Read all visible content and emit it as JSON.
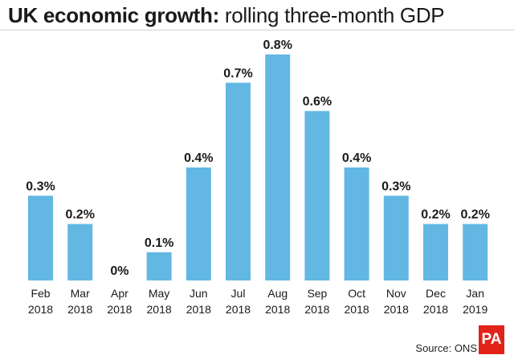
{
  "title": {
    "bold": "UK economic growth:",
    "rest": " rolling three-month GDP"
  },
  "source": "Source: ONS",
  "logo_text": "PA",
  "colors": {
    "bar": "#62b8e3",
    "text": "#1a1a1a",
    "logo": "#e2231a"
  },
  "chart_data": {
    "type": "bar",
    "title": "UK economic growth: rolling three-month GDP",
    "categories": [
      [
        "Feb",
        "2018"
      ],
      [
        "Mar",
        "2018"
      ],
      [
        "Apr",
        "2018"
      ],
      [
        "May",
        "2018"
      ],
      [
        "Jun",
        "2018"
      ],
      [
        "Jul",
        "2018"
      ],
      [
        "Aug",
        "2018"
      ],
      [
        "Sep",
        "2018"
      ],
      [
        "Oct",
        "2018"
      ],
      [
        "Nov",
        "2018"
      ],
      [
        "Dec",
        "2018"
      ],
      [
        "Jan",
        "2019"
      ]
    ],
    "values": [
      0.3,
      0.2,
      0,
      0.1,
      0.4,
      0.7,
      0.8,
      0.6,
      0.4,
      0.3,
      0.2,
      0.2
    ],
    "value_labels": [
      "0.3%",
      "0.2%",
      "0%",
      "0.1%",
      "0.4%",
      "0.7%",
      "0.8%",
      "0.6%",
      "0.4%",
      "0.3%",
      "0.2%",
      "0.2%"
    ],
    "unit": "%",
    "ylim": [
      0,
      0.8
    ],
    "grid": false,
    "legend": "none"
  }
}
